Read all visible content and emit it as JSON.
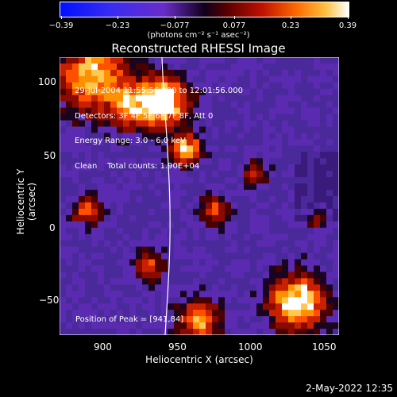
{
  "colorbar": {
    "ticks": [
      "−0.39",
      "−0.23",
      "−0.077",
      "0.077",
      "0.23",
      "0.39"
    ],
    "units": "(photons cm⁻² s⁻¹ asec⁻²)"
  },
  "plot": {
    "title": "Reconstructed RHESSI Image",
    "xlabel": "Heliocentric X (arcsec)",
    "ylabel": "Heliocentric Y (arcsec)",
    "x_ticks": [
      "900",
      "950",
      "1000",
      "1050"
    ],
    "y_ticks": [
      "100",
      "50",
      "0",
      "−50"
    ],
    "info_lines": [
      "29-Jul-2004 11:55:56.000 to 12:01:56.000",
      "Detectors: 3F 4F 5F 6F 7F 8F, Att 0",
      "Energy Range: 3.0 - 6.0 keV",
      "Clean    Total counts: 1.90E+04"
    ],
    "peak_label": "Position of Peak = [941,84]"
  },
  "footer": {
    "timestamp": "2-May-2022 12:35"
  },
  "colors": {
    "background": "#000000",
    "text": "#ffffff",
    "limb": "#ffffff"
  }
}
